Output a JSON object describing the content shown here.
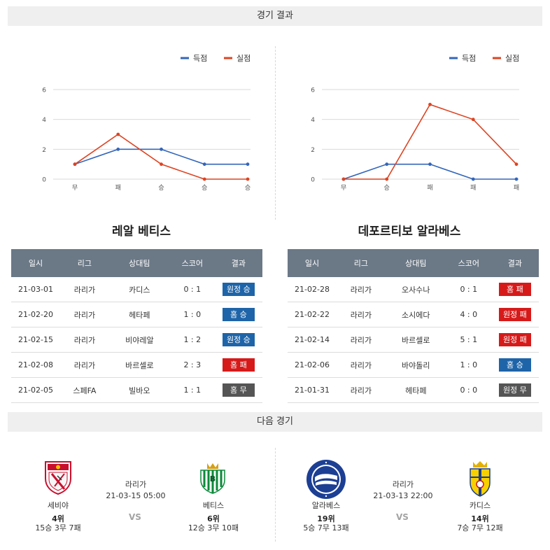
{
  "sections": {
    "results_title": "경기 결과",
    "next_title": "다음 경기"
  },
  "legend": {
    "scored": "득점",
    "conceded": "실점"
  },
  "colors": {
    "scored": "#3366bb",
    "conceded": "#dd4422",
    "win": "#1e64a8",
    "loss": "#d61a1a",
    "draw": "#555555"
  },
  "chart_data": [
    {
      "type": "line",
      "team": "레알 베티스",
      "categories": [
        "무",
        "패",
        "승",
        "승",
        "승"
      ],
      "series": [
        {
          "name": "득점",
          "values": [
            1,
            2,
            2,
            1,
            1
          ]
        },
        {
          "name": "실점",
          "values": [
            1,
            3,
            1,
            0,
            0
          ]
        }
      ],
      "ylim": [
        0,
        6
      ],
      "yticks": [
        "0",
        "2",
        "4",
        "6"
      ],
      "legend_position": "top-right",
      "grid": true
    },
    {
      "type": "line",
      "team": "데포르티보 알라베스",
      "categories": [
        "무",
        "승",
        "패",
        "패",
        "패"
      ],
      "series": [
        {
          "name": "득점",
          "values": [
            0,
            1,
            1,
            0,
            0
          ]
        },
        {
          "name": "실점",
          "values": [
            0,
            0,
            5,
            4,
            1
          ]
        }
      ],
      "ylim": [
        0,
        6
      ],
      "yticks": [
        "0",
        "2",
        "4",
        "6"
      ],
      "legend_position": "top-right",
      "grid": true
    }
  ],
  "tables": {
    "headers": [
      "일시",
      "리그",
      "상대팀",
      "스코어",
      "결과"
    ],
    "left": {
      "team": "레알 베티스",
      "rows": [
        {
          "date": "21-03-01",
          "league": "라리가",
          "opponent": "카디스",
          "score": "0 : 1",
          "result": "원정 승",
          "kind": "win"
        },
        {
          "date": "21-02-20",
          "league": "라리가",
          "opponent": "헤타페",
          "score": "1 : 0",
          "result": "홈 승",
          "kind": "win"
        },
        {
          "date": "21-02-15",
          "league": "라리가",
          "opponent": "비야레알",
          "score": "1 : 2",
          "result": "원정 승",
          "kind": "win"
        },
        {
          "date": "21-02-08",
          "league": "라리가",
          "opponent": "바르셀로",
          "score": "2 : 3",
          "result": "홈 패",
          "kind": "loss"
        },
        {
          "date": "21-02-05",
          "league": "스페FA",
          "opponent": "빌바오",
          "score": "1 : 1",
          "result": "홈 무",
          "kind": "draw"
        }
      ]
    },
    "right": {
      "team": "데포르티보 알라베스",
      "rows": [
        {
          "date": "21-02-28",
          "league": "라리가",
          "opponent": "오사수나",
          "score": "0 : 1",
          "result": "홈 패",
          "kind": "loss"
        },
        {
          "date": "21-02-22",
          "league": "라리가",
          "opponent": "소시에다",
          "score": "4 : 0",
          "result": "원정 패",
          "kind": "loss"
        },
        {
          "date": "21-02-14",
          "league": "라리가",
          "opponent": "바르셀로",
          "score": "5 : 1",
          "result": "원정 패",
          "kind": "loss"
        },
        {
          "date": "21-02-06",
          "league": "라리가",
          "opponent": "바야돌리",
          "score": "1 : 0",
          "result": "홈 승",
          "kind": "win"
        },
        {
          "date": "21-01-31",
          "league": "라리가",
          "opponent": "헤타페",
          "score": "0 : 0",
          "result": "원정 무",
          "kind": "draw"
        }
      ]
    }
  },
  "next": {
    "left": {
      "home": {
        "name": "세비야",
        "rank": "4위",
        "record": "15승 3무 7패",
        "crest": "sevilla-crest"
      },
      "away": {
        "name": "베티스",
        "rank": "6위",
        "record": "12승 3무 10패",
        "crest": "betis-crest"
      },
      "league": "라리가",
      "datetime": "21-03-15 05:00",
      "vs": "VS"
    },
    "right": {
      "home": {
        "name": "알라베스",
        "rank": "19위",
        "record": "5승 7무 13패",
        "crest": "alaves-crest"
      },
      "away": {
        "name": "카디스",
        "rank": "14위",
        "record": "7승 7무 12패",
        "crest": "cadiz-crest"
      },
      "league": "라리가",
      "datetime": "21-03-13 22:00",
      "vs": "VS"
    }
  }
}
